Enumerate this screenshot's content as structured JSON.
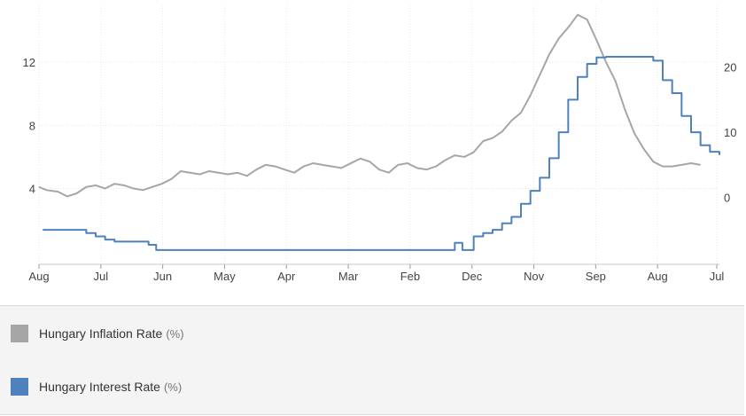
{
  "chart_data": {
    "type": "line",
    "x_tick_labels": [
      "Aug",
      "Jul",
      "Jun",
      "May",
      "Apr",
      "Mar",
      "Feb",
      "Dec",
      "Nov",
      "Sep",
      "Aug",
      "Jul"
    ],
    "y_left": {
      "ticks": [
        "4",
        "8",
        "12"
      ],
      "range": [
        -0.8,
        15.6
      ]
    },
    "y_right": {
      "ticks": [
        "0",
        "10",
        "20"
      ],
      "range": [
        -10.3,
        29.5
      ]
    },
    "grid": true,
    "legend_position": "bottom",
    "series": [
      {
        "name": "Hungary Inflation Rate",
        "unit": "(%)",
        "color": "#a6a6a6",
        "axis": "left",
        "points": [
          [
            0.0,
            4.1
          ],
          [
            0.4,
            3.9
          ],
          [
            1.0,
            3.8
          ],
          [
            1.5,
            3.5
          ],
          [
            2.0,
            3.7
          ],
          [
            2.5,
            4.1
          ],
          [
            3.0,
            4.2
          ],
          [
            3.5,
            4.0
          ],
          [
            4.0,
            4.3
          ],
          [
            4.5,
            4.2
          ],
          [
            5.0,
            4.0
          ],
          [
            5.5,
            3.9
          ],
          [
            6.0,
            4.1
          ],
          [
            6.5,
            4.3
          ],
          [
            7.0,
            4.6
          ],
          [
            7.5,
            5.1
          ],
          [
            8.0,
            5.0
          ],
          [
            8.5,
            4.9
          ],
          [
            9.0,
            5.1
          ],
          [
            9.5,
            5.0
          ],
          [
            10.0,
            4.9
          ],
          [
            10.5,
            5.0
          ],
          [
            11.0,
            4.8
          ],
          [
            11.5,
            5.2
          ],
          [
            12.0,
            5.5
          ],
          [
            12.5,
            5.4
          ],
          [
            13.0,
            5.2
          ],
          [
            13.5,
            5.0
          ],
          [
            14.0,
            5.4
          ],
          [
            14.5,
            5.6
          ],
          [
            15.0,
            5.5
          ],
          [
            15.5,
            5.4
          ],
          [
            16.0,
            5.3
          ],
          [
            16.5,
            5.6
          ],
          [
            17.0,
            5.9
          ],
          [
            17.5,
            5.7
          ],
          [
            18.0,
            5.2
          ],
          [
            18.5,
            5.0
          ],
          [
            19.0,
            5.5
          ],
          [
            19.5,
            5.6
          ],
          [
            20.0,
            5.3
          ],
          [
            20.5,
            5.2
          ],
          [
            21.0,
            5.4
          ],
          [
            21.5,
            5.8
          ],
          [
            22.0,
            6.1
          ],
          [
            22.5,
            6.0
          ],
          [
            23.0,
            6.3
          ],
          [
            23.5,
            7.0
          ],
          [
            24.0,
            7.2
          ],
          [
            24.5,
            7.6
          ],
          [
            25.0,
            8.3
          ],
          [
            25.5,
            8.8
          ],
          [
            26.0,
            9.9
          ],
          [
            26.5,
            11.2
          ],
          [
            27.0,
            12.5
          ],
          [
            27.5,
            13.5
          ],
          [
            28.0,
            14.2
          ],
          [
            28.5,
            15.0
          ],
          [
            29.0,
            14.7
          ],
          [
            29.5,
            13.4
          ],
          [
            30.0,
            12.0
          ],
          [
            30.5,
            10.8
          ],
          [
            31.0,
            9.0
          ],
          [
            31.5,
            7.5
          ],
          [
            32.0,
            6.5
          ],
          [
            32.5,
            5.7
          ],
          [
            33.0,
            5.4
          ],
          [
            33.5,
            5.4
          ],
          [
            34.0,
            5.5
          ],
          [
            34.5,
            5.6
          ],
          [
            35.0,
            5.5
          ]
        ]
      },
      {
        "name": "Hungary Interest Rate",
        "unit": "(%)",
        "color": "#4f81bd",
        "axis": "right",
        "points": [
          [
            0.2,
            -5.0
          ],
          [
            2.0,
            -5.0
          ],
          [
            2.5,
            -5.5
          ],
          [
            3.0,
            -6.0
          ],
          [
            3.5,
            -6.5
          ],
          [
            4.0,
            -6.8
          ],
          [
            5.5,
            -6.8
          ],
          [
            5.8,
            -7.3
          ],
          [
            6.2,
            -8.1
          ],
          [
            21.8,
            -8.1
          ],
          [
            22.0,
            -7.0
          ],
          [
            22.4,
            -8.1
          ],
          [
            23.0,
            -6.0
          ],
          [
            23.5,
            -5.5
          ],
          [
            24.0,
            -5.0
          ],
          [
            24.5,
            -4.0
          ],
          [
            25.0,
            -3.0
          ],
          [
            25.5,
            -1.0
          ],
          [
            26.0,
            1.0
          ],
          [
            26.5,
            3.0
          ],
          [
            27.0,
            6.0
          ],
          [
            27.5,
            10.0
          ],
          [
            28.0,
            15.0
          ],
          [
            28.5,
            18.5
          ],
          [
            29.0,
            20.5
          ],
          [
            29.5,
            21.5
          ],
          [
            30.0,
            21.6
          ],
          [
            30.5,
            21.6
          ],
          [
            31.0,
            21.6
          ],
          [
            31.5,
            21.6
          ],
          [
            32.0,
            21.6
          ],
          [
            32.5,
            21.0
          ],
          [
            33.0,
            18.0
          ],
          [
            33.5,
            16.0
          ],
          [
            34.0,
            12.5
          ],
          [
            34.5,
            10.0
          ],
          [
            35.0,
            8.0
          ],
          [
            35.5,
            7.0
          ],
          [
            36.0,
            6.5
          ]
        ]
      }
    ]
  }
}
